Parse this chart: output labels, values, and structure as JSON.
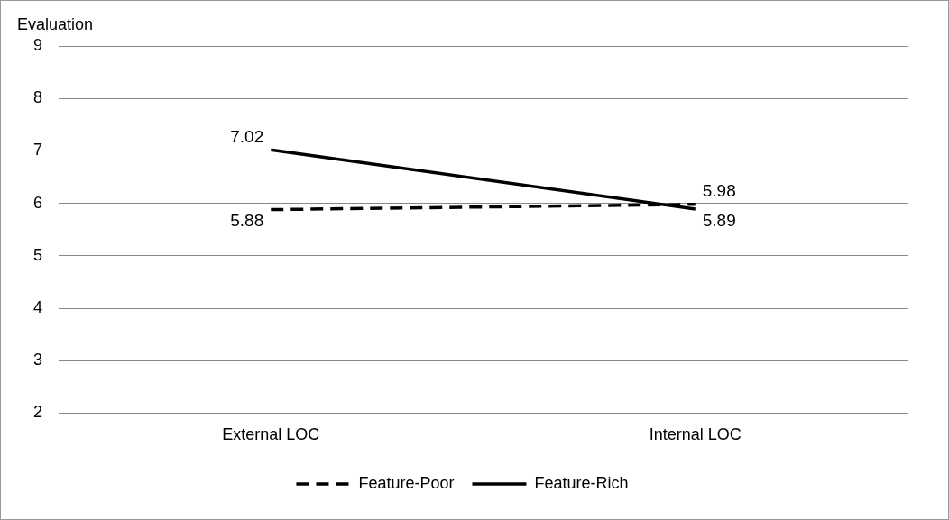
{
  "chart_data": {
    "type": "line",
    "ylabel": "Evaluation",
    "categories": [
      "External LOC",
      "Internal LOC"
    ],
    "series": [
      {
        "name": "Feature-Poor",
        "color": "#000000",
        "values": [
          5.88,
          5.98
        ],
        "line_style": "dashed"
      },
      {
        "name": "Feature-Rich",
        "color": "#000000",
        "values": [
          7.02,
          5.89
        ],
        "line_style": "solid"
      }
    ],
    "ylim": [
      2,
      9
    ],
    "yticks": [
      2,
      3,
      4,
      5,
      6,
      7,
      8,
      9
    ],
    "grid": "y",
    "legend": "bottom",
    "data_labels": true,
    "marker": "none"
  }
}
